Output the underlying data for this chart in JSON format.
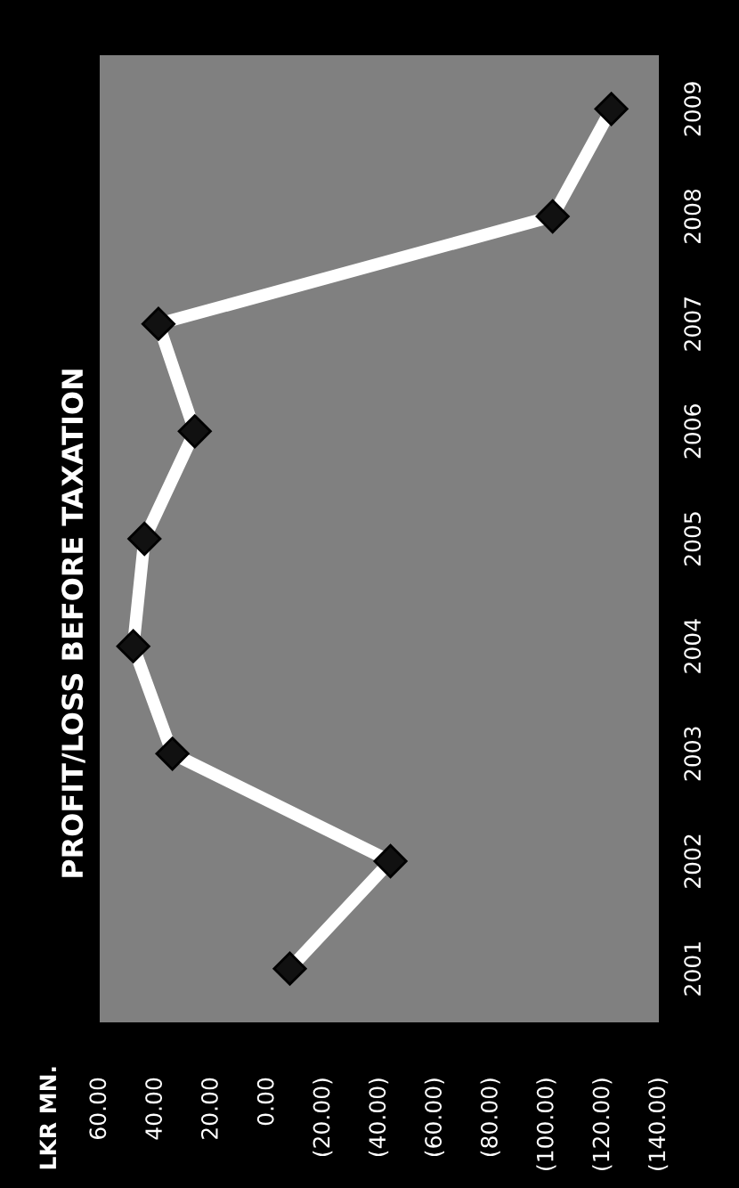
{
  "chart_data": {
    "type": "line",
    "orientation": "horizontal",
    "title": "PROFIT/LOSS BEFORE TAXATION",
    "annotations": [
      "LKR MN."
    ],
    "categories": [
      "2009",
      "2008",
      "2007",
      "2006",
      "2005",
      "2004",
      "2003",
      "2002",
      "2001"
    ],
    "series": [
      {
        "color": "#ffffff",
        "values": [
          -123,
          -102,
          39,
          26,
          44,
          48,
          34,
          -44,
          -8
        ]
      }
    ],
    "xlim": [
      60,
      -140
    ],
    "xticks": [
      {
        "value": 60,
        "label": "60.00"
      },
      {
        "value": 40,
        "label": "40.00"
      },
      {
        "value": 20,
        "label": "20.00"
      },
      {
        "value": 0,
        "label": "0.00"
      },
      {
        "value": -20,
        "label": "(20.00)"
      },
      {
        "value": -40,
        "label": "(40.00)"
      },
      {
        "value": -60,
        "label": "(60.00)"
      },
      {
        "value": -80,
        "label": "(80.00)"
      },
      {
        "value": -100,
        "label": "(100.00)"
      },
      {
        "value": -120,
        "label": "(120.00)"
      },
      {
        "value": -140,
        "label": "(140.00)"
      }
    ],
    "marker": "diamond",
    "line_style": "solid",
    "grid": false,
    "legend": false
  }
}
